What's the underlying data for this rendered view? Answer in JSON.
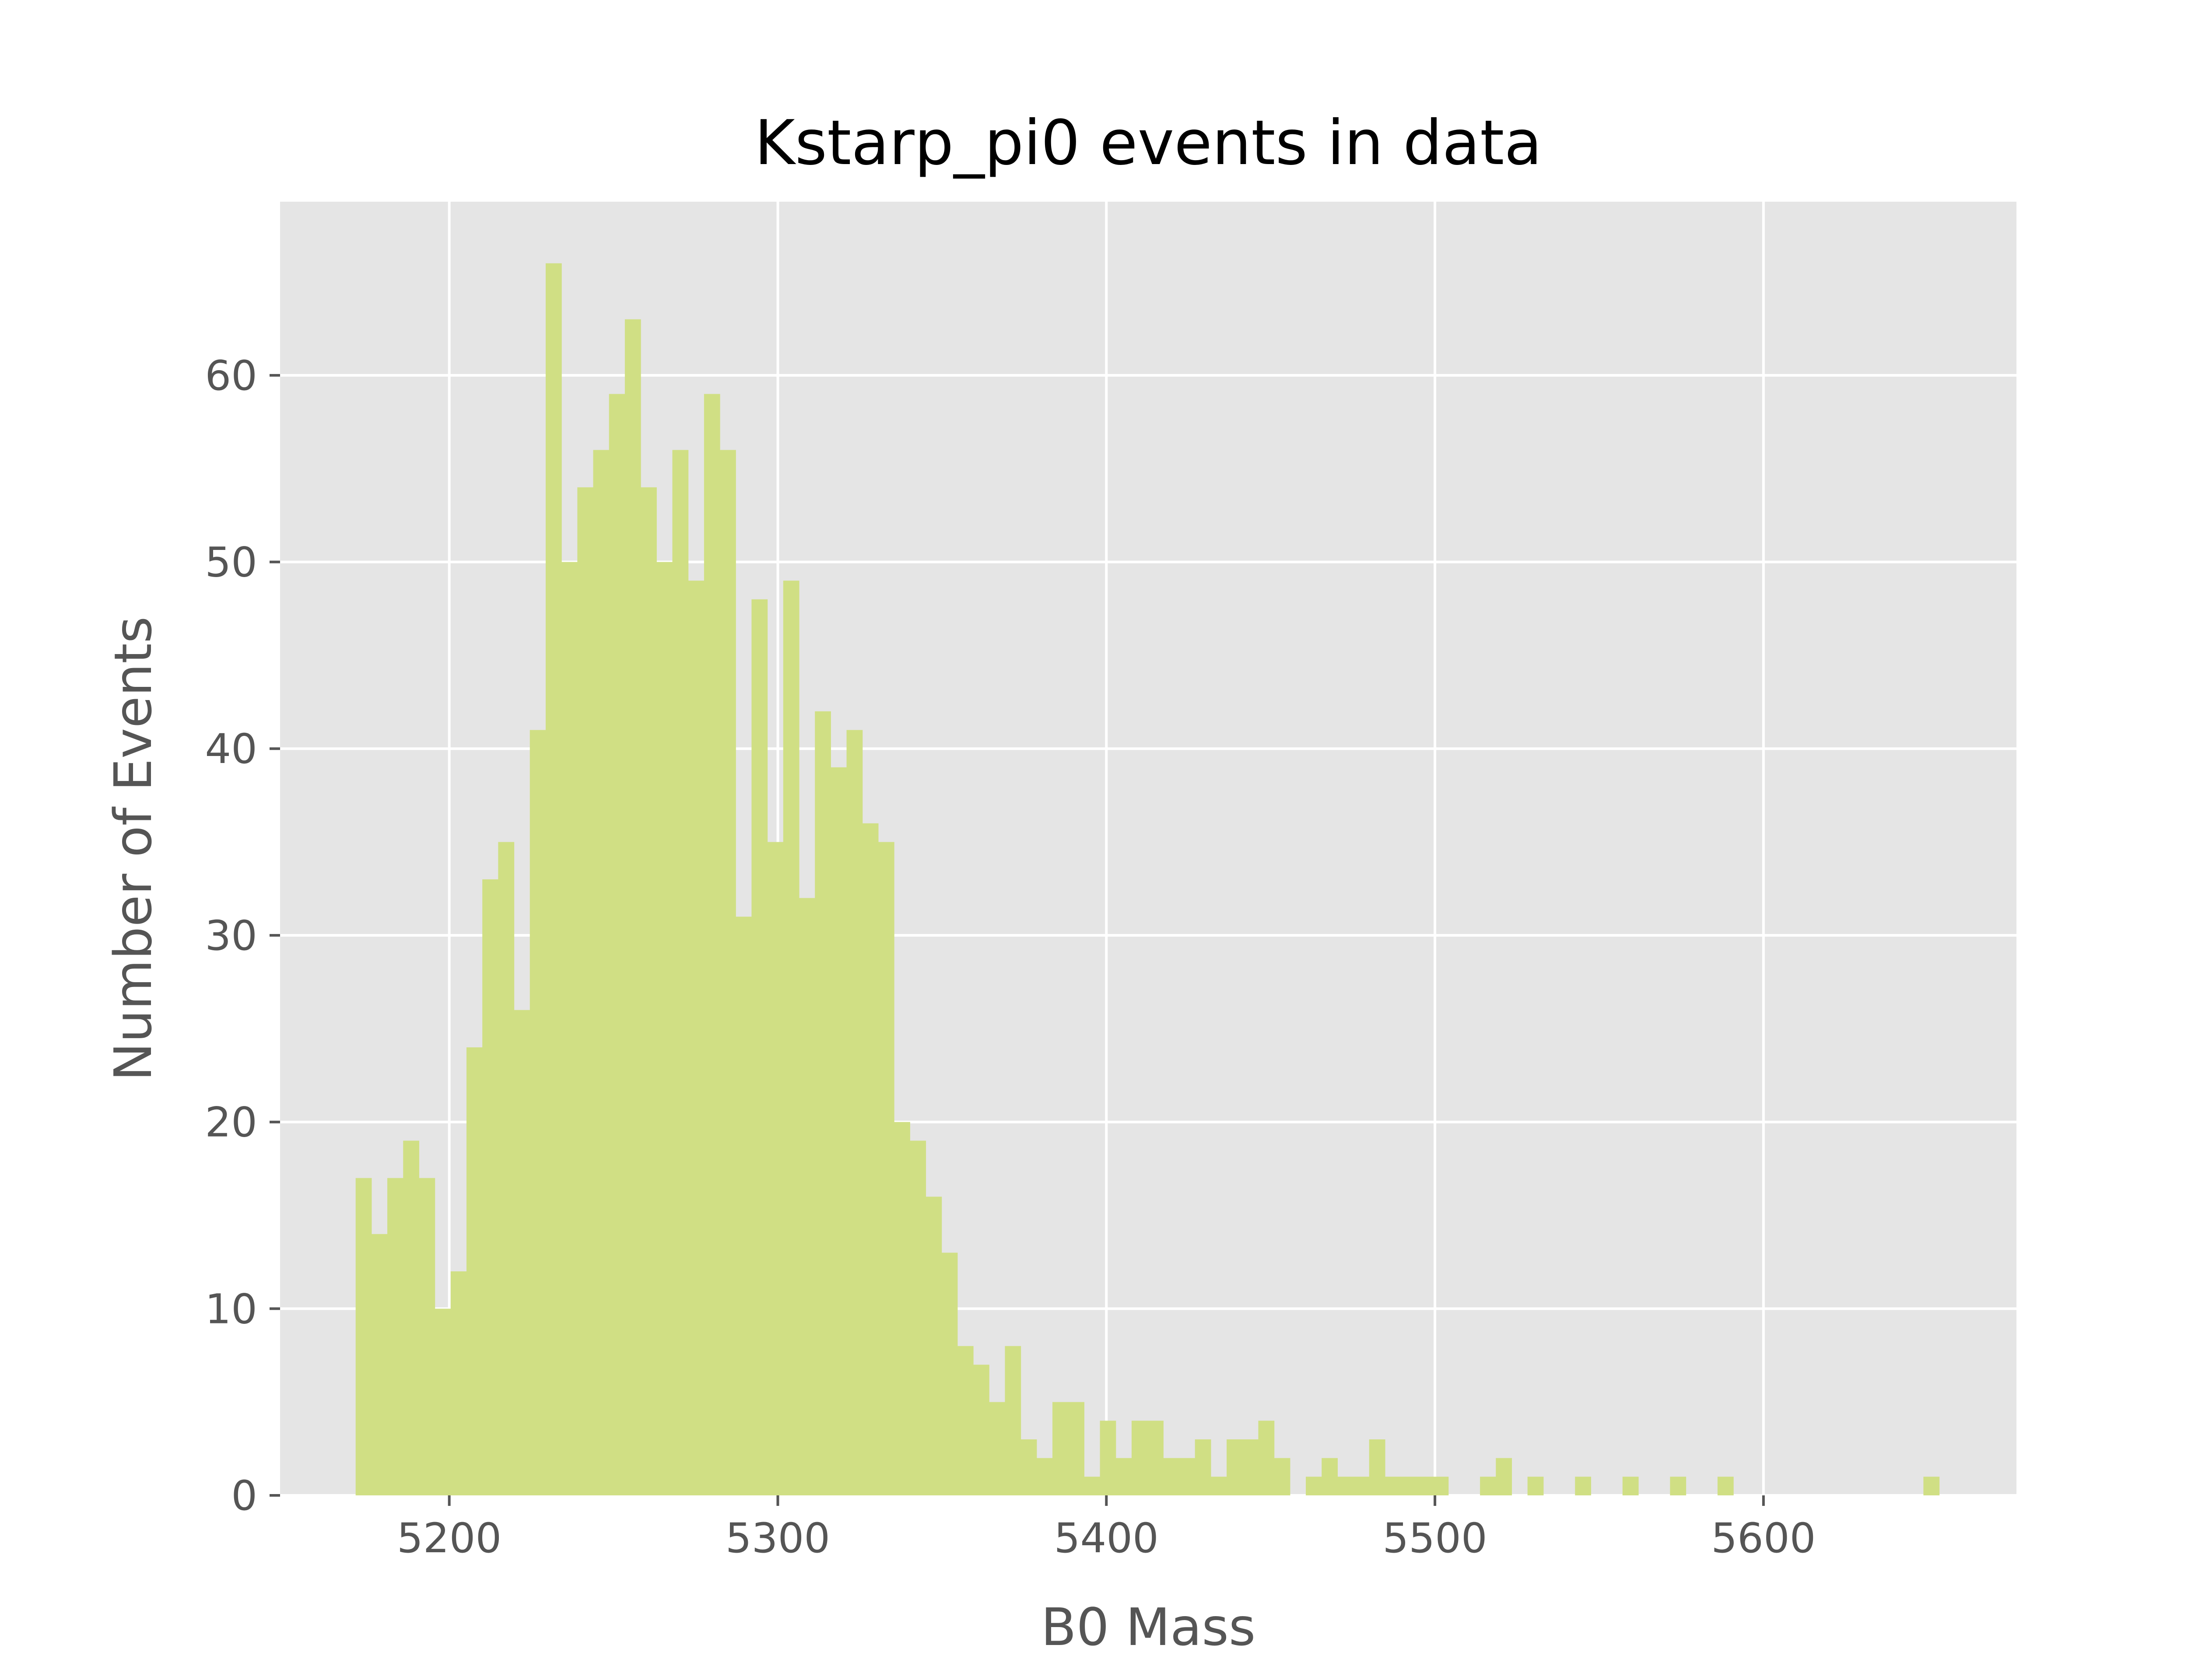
{
  "chart_data": {
    "type": "bar",
    "title": "Kstarp_pi0 events in data",
    "xlabel": "B0 Mass",
    "ylabel": "Number of Events",
    "xlim": [
      5148.5,
      5677
    ],
    "ylim": [
      0,
      69.3
    ],
    "x_ticks": [
      5200,
      5300,
      5400,
      5500,
      5600
    ],
    "y_ticks": [
      0,
      10,
      20,
      30,
      40,
      50,
      60
    ],
    "grid": true,
    "bar_color": "#d0df84",
    "background_color": "#e5e5e5",
    "bin_start": 5171.5,
    "bin_width": 4.82,
    "values": [
      17,
      14,
      17,
      19,
      17,
      10,
      12,
      24,
      33,
      35,
      26,
      41,
      66,
      50,
      54,
      56,
      59,
      63,
      54,
      50,
      56,
      49,
      59,
      56,
      31,
      48,
      35,
      49,
      32,
      42,
      39,
      41,
      36,
      35,
      20,
      19,
      16,
      13,
      8,
      7,
      5,
      8,
      3,
      2,
      5,
      5,
      1,
      4,
      2,
      4,
      4,
      2,
      2,
      3,
      1,
      3,
      3,
      4,
      2,
      0,
      1,
      2,
      1,
      1,
      3,
      1,
      1,
      1,
      1,
      0,
      0,
      1,
      2,
      0,
      1,
      0,
      0,
      1,
      0,
      0,
      1,
      0,
      0,
      1,
      0,
      0,
      1,
      0,
      0,
      0,
      0,
      0,
      0,
      0,
      0,
      0,
      0,
      0,
      0,
      1
    ]
  }
}
